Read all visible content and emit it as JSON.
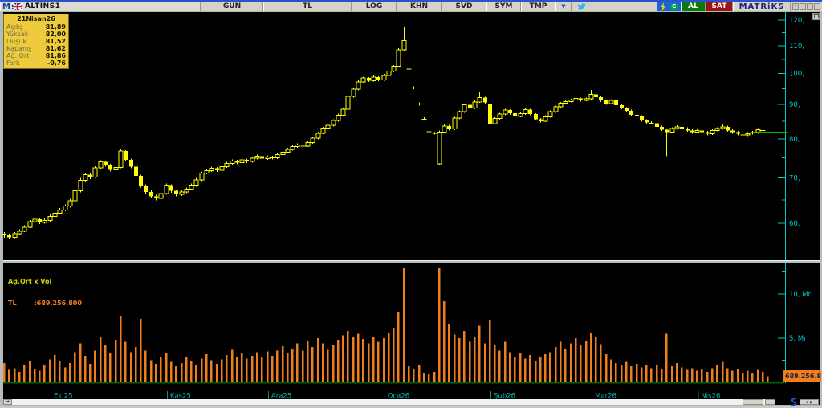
{
  "toolbar": {
    "m_logo": "M",
    "symbol": "ALTINS1",
    "buttons": [
      "GUN",
      "TL",
      "LOG",
      "KHN",
      "SVD",
      "SYM",
      "TMP"
    ],
    "dropdown_arrow": "▼",
    "al_label": "AL",
    "sat_label": "SAT",
    "brand": "MATRiKS",
    "green_icon_letter": "C"
  },
  "tooltip": {
    "title": "21Nisan26",
    "rows": [
      {
        "label": "Açılış",
        "value": "81,89"
      },
      {
        "label": "Yüksek",
        "value": "82,00"
      },
      {
        "label": "Düşük",
        "value": "81,52"
      },
      {
        "label": "Kapanış",
        "value": "81,62"
      },
      {
        "label": "Ağ. Ort",
        "value": "81,86"
      },
      {
        "label": "Fark",
        "value": "-0,76"
      }
    ]
  },
  "volume_header": {
    "indicator_label": "Ağ.Ort x Vol",
    "currency_label": "TL",
    "value": ":689.256.800"
  },
  "badge": {
    "value": "689.256.8"
  },
  "icons": {
    "scroll_left": "◄",
    "pager_left": "◀",
    "pager_right": "▶",
    "dot": "."
  },
  "colors": {
    "candle": "#ffff00",
    "volume": "#ee7f1c",
    "axis": "#00c8c8",
    "month": "#00b4b4",
    "cursor": "#800080",
    "last_price_line": "#00b800",
    "baseline": "#0b5d0b",
    "badge_bg": "#ee7f1c",
    "tooltip_bg": "#eecb3c"
  },
  "chart_data": {
    "type": "candlestick",
    "title": "ALTINS1 daily candlestick with Ağ.Ort x Vol volume pane",
    "scale": "log",
    "last_avg_price": 81.86,
    "price_axis": {
      "ticks": [
        {
          "v": 120,
          "label": "120,"
        },
        {
          "v": 110,
          "label": "110,"
        },
        {
          "v": 100,
          "label": "100,"
        },
        {
          "v": 90,
          "label": "90,"
        },
        {
          "v": 80,
          "label": "80,"
        },
        {
          "v": 70,
          "label": "70,"
        },
        {
          "v": 60,
          "label": "60,"
        }
      ],
      "minor_ticks": [
        115,
        105,
        95,
        85,
        75,
        65
      ]
    },
    "volume_axis": {
      "unit": "Mr",
      "ticks": [
        {
          "v": 10,
          "label": "10, Mr"
        },
        {
          "v": 5,
          "label": "5, Mr"
        }
      ],
      "minor_ticks": [
        12.5,
        7.5,
        2.5
      ]
    },
    "months": [
      {
        "label": "Eki25",
        "index": 10
      },
      {
        "label": "Kas25",
        "index": 33
      },
      {
        "label": "Ara25",
        "index": 53
      },
      {
        "label": "Oca26",
        "index": 76
      },
      {
        "label": "Şub26",
        "index": 97
      },
      {
        "label": "Mar26",
        "index": 117
      },
      {
        "label": "Nis26",
        "index": 138
      }
    ],
    "candles": [
      [
        57.9,
        58.2,
        57.1,
        57.6
      ],
      [
        57.6,
        57.9,
        56.8,
        57.2
      ],
      [
        57.2,
        58.2,
        57.0,
        57.9
      ],
      [
        57.9,
        58.8,
        57.6,
        58.4
      ],
      [
        58.4,
        59.6,
        58.2,
        59.2
      ],
      [
        59.2,
        60.7,
        59.0,
        60.3
      ],
      [
        60.3,
        61.2,
        60.0,
        60.8
      ],
      [
        60.8,
        61.0,
        59.8,
        60.2
      ],
      [
        60.2,
        61.0,
        59.9,
        60.6
      ],
      [
        60.6,
        61.8,
        60.3,
        61.4
      ],
      [
        61.4,
        62.5,
        61.1,
        62.1
      ],
      [
        62.1,
        63.2,
        61.8,
        62.8
      ],
      [
        62.8,
        64.0,
        62.5,
        63.6
      ],
      [
        63.6,
        65.2,
        63.3,
        64.8
      ],
      [
        64.8,
        67.4,
        64.5,
        67.0
      ],
      [
        67.0,
        70.0,
        66.7,
        69.5
      ],
      [
        69.5,
        71.2,
        69.1,
        70.8
      ],
      [
        70.8,
        71.1,
        69.8,
        70.2
      ],
      [
        70.2,
        72.9,
        70.0,
        72.5
      ],
      [
        72.5,
        74.4,
        72.2,
        74.0
      ],
      [
        74.0,
        74.3,
        72.8,
        73.2
      ],
      [
        73.2,
        73.5,
        71.6,
        72.0
      ],
      [
        72.0,
        73.0,
        71.7,
        72.6
      ],
      [
        72.6,
        77.4,
        72.4,
        76.8
      ],
      [
        76.8,
        77.0,
        74.1,
        74.5
      ],
      [
        74.5,
        74.8,
        72.4,
        72.8
      ],
      [
        72.8,
        73.0,
        70.1,
        70.5
      ],
      [
        70.5,
        70.8,
        67.8,
        68.2
      ],
      [
        68.2,
        68.5,
        66.4,
        66.8
      ],
      [
        66.8,
        67.1,
        65.4,
        65.8
      ],
      [
        65.8,
        66.1,
        64.9,
        65.3
      ],
      [
        65.3,
        66.8,
        65.0,
        66.4
      ],
      [
        66.4,
        68.7,
        66.1,
        68.3
      ],
      [
        68.3,
        68.5,
        66.6,
        67.0
      ],
      [
        67.0,
        67.3,
        65.8,
        66.2
      ],
      [
        66.2,
        67.2,
        65.9,
        66.8
      ],
      [
        66.8,
        67.8,
        66.5,
        67.4
      ],
      [
        67.4,
        68.7,
        67.1,
        68.3
      ],
      [
        68.3,
        70.0,
        68.0,
        69.6
      ],
      [
        69.6,
        71.6,
        69.3,
        71.2
      ],
      [
        71.2,
        72.2,
        70.9,
        71.8
      ],
      [
        71.8,
        72.8,
        71.5,
        72.4
      ],
      [
        72.4,
        72.7,
        71.5,
        71.9
      ],
      [
        71.9,
        73.2,
        71.6,
        72.8
      ],
      [
        72.8,
        74.0,
        72.5,
        73.6
      ],
      [
        73.6,
        74.6,
        73.3,
        74.2
      ],
      [
        74.2,
        74.5,
        73.4,
        73.8
      ],
      [
        73.8,
        74.9,
        73.5,
        74.5
      ],
      [
        74.5,
        74.8,
        73.7,
        74.1
      ],
      [
        74.1,
        75.3,
        73.8,
        74.9
      ],
      [
        74.9,
        75.8,
        74.6,
        75.4
      ],
      [
        75.4,
        75.7,
        74.4,
        74.8
      ],
      [
        74.8,
        75.6,
        74.5,
        75.2
      ],
      [
        75.2,
        75.5,
        74.6,
        75.0
      ],
      [
        75.0,
        76.2,
        74.7,
        75.8
      ],
      [
        75.8,
        76.9,
        75.5,
        76.5
      ],
      [
        76.5,
        77.6,
        76.2,
        77.2
      ],
      [
        77.2,
        78.3,
        76.9,
        77.9
      ],
      [
        77.9,
        78.8,
        77.6,
        78.4
      ],
      [
        78.4,
        78.7,
        77.7,
        78.1
      ],
      [
        78.1,
        79.4,
        77.8,
        79.0
      ],
      [
        79.0,
        80.6,
        78.7,
        80.2
      ],
      [
        80.2,
        82.0,
        79.9,
        81.6
      ],
      [
        81.6,
        83.4,
        81.3,
        83.0
      ],
      [
        83.0,
        84.2,
        82.7,
        83.8
      ],
      [
        83.8,
        85.6,
        83.5,
        85.2
      ],
      [
        85.2,
        87.2,
        84.9,
        86.8
      ],
      [
        86.8,
        88.9,
        86.5,
        88.5
      ],
      [
        88.5,
        93.0,
        88.2,
        92.5
      ],
      [
        92.5,
        95.3,
        92.2,
        94.8
      ],
      [
        94.8,
        97.7,
        94.5,
        97.2
      ],
      [
        97.2,
        99.0,
        96.9,
        98.5
      ],
      [
        98.5,
        98.8,
        97.2,
        97.6
      ],
      [
        97.6,
        99.3,
        97.3,
        98.8
      ],
      [
        98.8,
        99.1,
        97.5,
        97.9
      ],
      [
        97.9,
        99.9,
        97.6,
        99.4
      ],
      [
        99.4,
        101.3,
        99.1,
        100.8
      ],
      [
        100.8,
        103.0,
        100.5,
        102.5
      ],
      [
        102.5,
        109.1,
        102.2,
        108.5
      ],
      [
        108.5,
        117.5,
        107.8,
        112.0
      ],
      [
        101.7,
        102.1,
        101.1,
        101.5
      ],
      [
        95.4,
        95.8,
        94.8,
        95.2
      ],
      [
        90.3,
        90.6,
        89.7,
        90.1
      ],
      [
        85.8,
        86.1,
        85.2,
        85.6
      ],
      [
        82.2,
        82.5,
        81.6,
        82.0
      ],
      [
        81.7,
        81.9,
        81.2,
        81.6
      ],
      [
        73.5,
        82.3,
        73.2,
        81.9
      ],
      [
        81.9,
        84.0,
        81.6,
        83.6
      ],
      [
        83.6,
        83.9,
        82.4,
        82.8
      ],
      [
        82.8,
        86.3,
        82.5,
        85.9
      ],
      [
        85.9,
        88.2,
        85.6,
        87.8
      ],
      [
        87.8,
        90.3,
        87.5,
        89.9
      ],
      [
        89.9,
        90.2,
        88.5,
        88.9
      ],
      [
        88.9,
        91.2,
        88.6,
        90.8
      ],
      [
        90.8,
        93.8,
        90.5,
        92.1
      ],
      [
        92.1,
        92.4,
        90.2,
        90.6
      ],
      [
        90.2,
        90.4,
        80.8,
        84.3
      ],
      [
        84.3,
        86.2,
        84.0,
        85.8
      ],
      [
        85.8,
        87.5,
        85.5,
        87.1
      ],
      [
        87.1,
        88.7,
        86.8,
        88.3
      ],
      [
        88.3,
        88.6,
        86.9,
        87.3
      ],
      [
        87.3,
        87.6,
        86.0,
        86.4
      ],
      [
        86.4,
        87.6,
        86.1,
        87.2
      ],
      [
        87.2,
        88.8,
        86.9,
        88.4
      ],
      [
        88.4,
        88.7,
        86.7,
        87.1
      ],
      [
        87.1,
        87.4,
        85.2,
        85.6
      ],
      [
        85.6,
        85.9,
        84.6,
        85.0
      ],
      [
        85.0,
        86.7,
        84.7,
        86.3
      ],
      [
        86.3,
        88.2,
        86.0,
        87.8
      ],
      [
        87.8,
        89.7,
        87.5,
        89.3
      ],
      [
        89.3,
        90.8,
        89.0,
        90.4
      ],
      [
        90.4,
        91.3,
        90.1,
        90.9
      ],
      [
        90.9,
        91.8,
        90.6,
        91.4
      ],
      [
        91.4,
        92.3,
        91.1,
        91.9
      ],
      [
        91.9,
        92.2,
        90.9,
        91.3
      ],
      [
        91.3,
        92.2,
        91.0,
        91.8
      ],
      [
        91.8,
        94.6,
        91.5,
        93.2
      ],
      [
        93.2,
        93.5,
        91.9,
        92.3
      ],
      [
        92.3,
        92.6,
        90.8,
        91.2
      ],
      [
        91.2,
        91.5,
        89.9,
        90.3
      ],
      [
        90.3,
        91.6,
        90.0,
        91.2
      ],
      [
        91.2,
        91.5,
        89.4,
        89.8
      ],
      [
        89.8,
        90.1,
        88.5,
        88.9
      ],
      [
        88.9,
        89.2,
        87.7,
        88.1
      ],
      [
        88.1,
        88.4,
        86.5,
        86.9
      ],
      [
        86.9,
        87.2,
        86.0,
        86.4
      ],
      [
        86.4,
        86.7,
        84.9,
        85.3
      ],
      [
        85.3,
        85.6,
        84.2,
        84.6
      ],
      [
        84.6,
        85.0,
        84.0,
        84.4
      ],
      [
        84.4,
        84.7,
        83.0,
        83.4
      ],
      [
        83.4,
        83.7,
        82.2,
        82.6
      ],
      [
        82.6,
        82.9,
        75.4,
        81.9
      ],
      [
        81.9,
        83.3,
        81.6,
        82.9
      ],
      [
        82.9,
        83.8,
        82.6,
        83.4
      ],
      [
        83.4,
        83.7,
        82.5,
        82.9
      ],
      [
        82.9,
        83.2,
        82.0,
        82.4
      ],
      [
        82.4,
        82.7,
        81.5,
        81.9
      ],
      [
        81.9,
        82.8,
        81.6,
        82.4
      ],
      [
        82.4,
        82.7,
        81.5,
        81.9
      ],
      [
        81.9,
        82.2,
        81.0,
        81.4
      ],
      [
        81.4,
        82.8,
        81.1,
        82.4
      ],
      [
        82.4,
        83.3,
        82.1,
        82.9
      ],
      [
        82.9,
        84.3,
        82.6,
        83.4
      ],
      [
        83.4,
        83.7,
        82.0,
        82.4
      ],
      [
        82.4,
        82.7,
        81.5,
        81.9
      ],
      [
        81.9,
        82.2,
        81.0,
        81.4
      ],
      [
        81.4,
        81.7,
        80.7,
        81.1
      ],
      [
        81.1,
        81.9,
        80.8,
        81.5
      ],
      [
        81.5,
        82.2,
        81.2,
        81.8
      ],
      [
        81.8,
        83.0,
        81.5,
        82.6
      ],
      [
        82.6,
        82.9,
        81.9,
        82.3
      ],
      [
        81.89,
        82.0,
        81.52,
        81.62
      ]
    ],
    "volumes_mr": [
      2.2,
      1.4,
      1.6,
      1.2,
      1.9,
      2.4,
      1.5,
      1.3,
      2.0,
      2.6,
      3.1,
      2.4,
      1.7,
      2.2,
      3.4,
      4.4,
      3.0,
      2.1,
      3.6,
      5.2,
      4.2,
      3.3,
      4.8,
      7.5,
      4.6,
      3.4,
      4.0,
      7.2,
      3.6,
      2.5,
      2.1,
      2.8,
      3.3,
      2.3,
      1.8,
      2.2,
      2.9,
      2.4,
      2.0,
      2.7,
      3.2,
      2.5,
      2.1,
      2.6,
      3.1,
      3.7,
      2.8,
      3.3,
      2.7,
      3.0,
      3.4,
      2.9,
      3.5,
      3.0,
      3.6,
      4.1,
      3.3,
      3.8,
      4.4,
      3.6,
      4.7,
      4.0,
      5.0,
      4.4,
      3.7,
      4.2,
      4.8,
      5.3,
      5.8,
      5.1,
      5.5,
      4.9,
      4.4,
      5.2,
      4.6,
      5.0,
      5.6,
      6.1,
      8.0,
      12.9,
      1.8,
      1.5,
      1.9,
      1.1,
      0.9,
      1.2,
      12.9,
      9.2,
      6.6,
      5.4,
      5.0,
      5.8,
      4.6,
      5.2,
      6.4,
      4.4,
      7.0,
      4.2,
      3.6,
      4.6,
      3.4,
      2.9,
      3.3,
      2.7,
      3.1,
      2.4,
      2.8,
      3.2,
      3.4,
      4.0,
      4.6,
      3.8,
      4.4,
      5.0,
      4.2,
      4.7,
      5.6,
      5.2,
      4.3,
      3.2,
      2.6,
      2.2,
      1.9,
      2.3,
      1.8,
      2.1,
      1.7,
      2.0,
      1.6,
      1.9,
      1.5,
      5.5,
      1.8,
      2.2,
      1.7,
      1.4,
      1.6,
      1.3,
      1.5,
      1.2,
      1.6,
      1.9,
      2.3,
      1.6,
      1.3,
      1.5,
      1.1,
      1.3,
      1.0,
      1.4,
      1.2,
      0.69
    ]
  }
}
